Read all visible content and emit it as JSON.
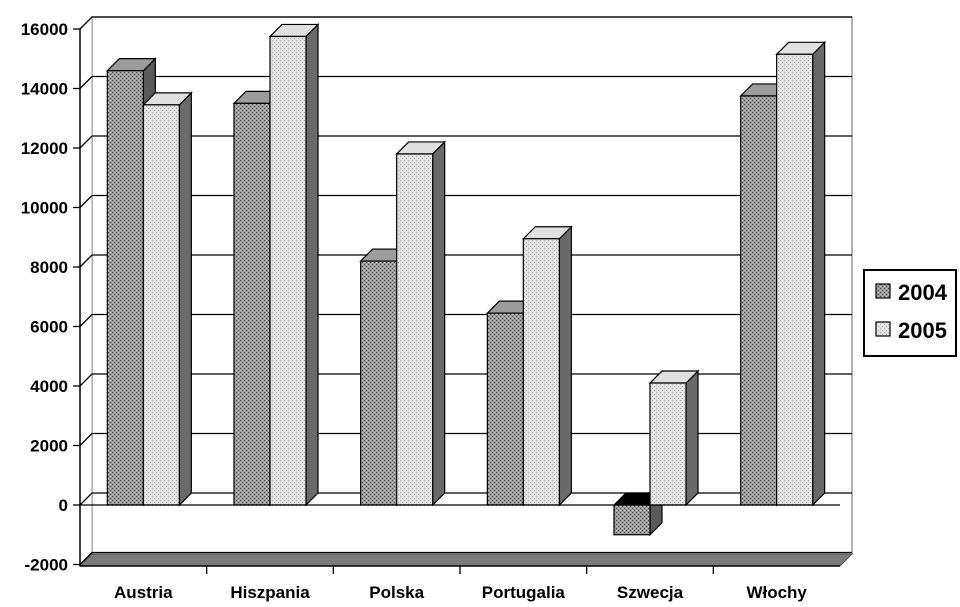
{
  "chart_data": {
    "type": "bar",
    "categories": [
      "Austria",
      "Hiszpania",
      "Polska",
      "Portugalia",
      "Szwecja",
      "Włochy"
    ],
    "series": [
      {
        "name": "2004",
        "values": [
          14600,
          13500,
          8200,
          6450,
          -1000,
          13750
        ],
        "color": "#8a8a8a"
      },
      {
        "name": "2005",
        "values": [
          13450,
          15750,
          11800,
          8950,
          4100,
          15150
        ],
        "color": "#d4d4d4"
      }
    ],
    "ylim": [
      -2000,
      16000
    ],
    "yticks": [
      "-2000",
      "0",
      "2000",
      "4000",
      "6000",
      "8000",
      "10000",
      "12000",
      "14000",
      "16000"
    ],
    "title": "",
    "xlabel": "",
    "ylabel": "",
    "grid": true,
    "three_d": true,
    "legend_position": "right"
  }
}
